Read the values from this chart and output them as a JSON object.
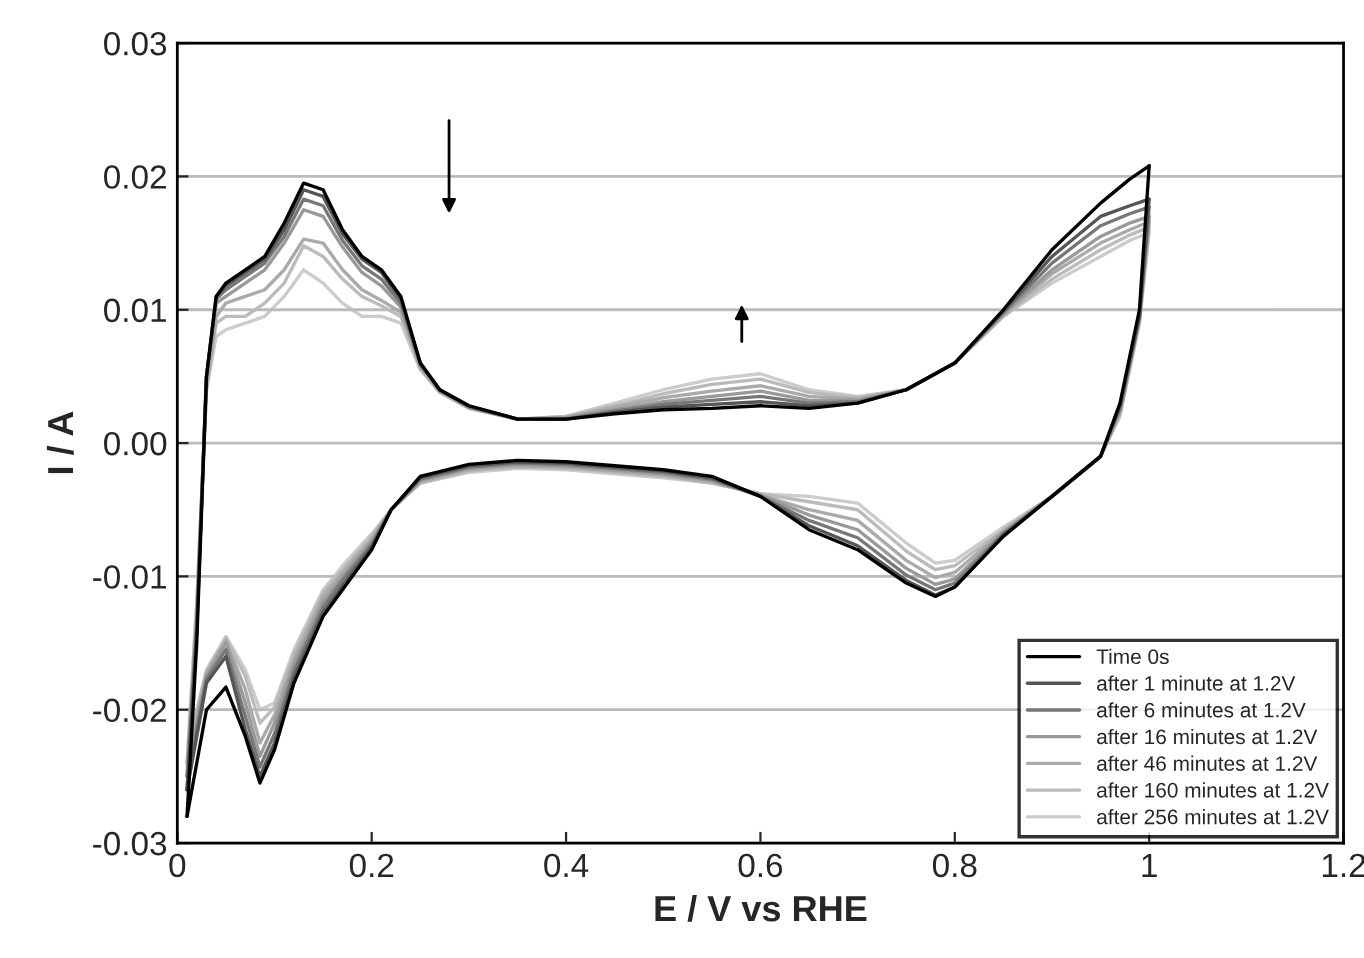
{
  "chart_data": {
    "type": "line",
    "xlabel": "E / V vs RHE",
    "ylabel": "I / A",
    "series": [
      {
        "name": "Time 0s",
        "color": "#000000",
        "x": [
          0.01,
          0.02,
          0.03,
          0.04,
          0.05,
          0.07,
          0.09,
          0.11,
          0.13,
          0.15,
          0.17,
          0.19,
          0.21,
          0.23,
          0.25,
          0.27,
          0.3,
          0.35,
          0.4,
          0.45,
          0.5,
          0.55,
          0.6,
          0.65,
          0.7,
          0.75,
          0.8,
          0.85,
          0.9,
          0.95,
          0.98,
          1.0
        ],
        "values": [
          -0.028,
          -0.015,
          0.005,
          0.011,
          0.012,
          0.013,
          0.014,
          0.0165,
          0.0195,
          0.019,
          0.016,
          0.014,
          0.013,
          0.011,
          0.006,
          0.004,
          0.0028,
          0.0018,
          0.0018,
          0.0022,
          0.0025,
          0.0026,
          0.0028,
          0.0026,
          0.003,
          0.004,
          0.006,
          0.01,
          0.0145,
          0.018,
          0.0198,
          0.0208
        ]
      },
      {
        "color": "#000000",
        "x": [
          1.0,
          0.99,
          0.97,
          0.95,
          0.9,
          0.85,
          0.8,
          0.78,
          0.75,
          0.7,
          0.65,
          0.6,
          0.55,
          0.5,
          0.45,
          0.4,
          0.35,
          0.3,
          0.25,
          0.22,
          0.2,
          0.17,
          0.15,
          0.12,
          0.1,
          0.085,
          0.07,
          0.05,
          0.03,
          0.02,
          0.01
        ],
        "values": [
          0.0208,
          0.01,
          0.003,
          -0.001,
          -0.004,
          -0.007,
          -0.0108,
          -0.0115,
          -0.0105,
          -0.008,
          -0.0065,
          -0.004,
          -0.0025,
          -0.002,
          -0.0017,
          -0.0014,
          -0.0013,
          -0.0016,
          -0.0025,
          -0.005,
          -0.008,
          -0.011,
          -0.013,
          -0.018,
          -0.023,
          -0.0255,
          -0.022,
          -0.0183,
          -0.02,
          -0.024,
          -0.028
        ]
      },
      {
        "name": "after 1 minute at 1.2V",
        "color": "#555555",
        "x": [
          0.01,
          0.02,
          0.03,
          0.04,
          0.05,
          0.07,
          0.09,
          0.11,
          0.13,
          0.15,
          0.17,
          0.19,
          0.21,
          0.23,
          0.25,
          0.27,
          0.3,
          0.35,
          0.4,
          0.45,
          0.5,
          0.55,
          0.6,
          0.65,
          0.7,
          0.75,
          0.8,
          0.85,
          0.9,
          0.95,
          0.98,
          1.0
        ],
        "values": [
          -0.026,
          -0.014,
          0.005,
          0.011,
          0.0118,
          0.0128,
          0.0138,
          0.016,
          0.019,
          0.0185,
          0.0157,
          0.0138,
          0.0128,
          0.0108,
          0.006,
          0.004,
          0.0028,
          0.0018,
          0.0018,
          0.0023,
          0.0027,
          0.0029,
          0.0031,
          0.0028,
          0.003,
          0.004,
          0.006,
          0.0099,
          0.014,
          0.017,
          0.0178,
          0.0183
        ]
      },
      {
        "color": "#555555",
        "x": [
          1.0,
          0.99,
          0.97,
          0.95,
          0.9,
          0.85,
          0.8,
          0.78,
          0.75,
          0.7,
          0.65,
          0.6,
          0.55,
          0.5,
          0.45,
          0.4,
          0.35,
          0.3,
          0.25,
          0.22,
          0.2,
          0.17,
          0.15,
          0.12,
          0.1,
          0.085,
          0.07,
          0.05,
          0.03,
          0.02,
          0.01
        ],
        "values": [
          0.0183,
          0.0095,
          0.0028,
          -0.001,
          -0.004,
          -0.0069,
          -0.0108,
          -0.0114,
          -0.0103,
          -0.0077,
          -0.0062,
          -0.004,
          -0.0026,
          -0.0021,
          -0.0018,
          -0.0015,
          -0.0014,
          -0.0017,
          -0.0026,
          -0.005,
          -0.0078,
          -0.0107,
          -0.0127,
          -0.0176,
          -0.0225,
          -0.025,
          -0.0215,
          -0.016,
          -0.018,
          -0.022,
          -0.026
        ]
      },
      {
        "name": "after 6 minutes at 1.2V",
        "color": "#777777",
        "x": [
          0.01,
          0.02,
          0.03,
          0.04,
          0.05,
          0.07,
          0.09,
          0.11,
          0.13,
          0.15,
          0.17,
          0.19,
          0.21,
          0.23,
          0.25,
          0.27,
          0.3,
          0.35,
          0.4,
          0.45,
          0.5,
          0.55,
          0.6,
          0.65,
          0.7,
          0.75,
          0.8,
          0.85,
          0.9,
          0.95,
          0.98,
          1.0
        ],
        "values": [
          -0.026,
          -0.014,
          0.005,
          0.0108,
          0.0115,
          0.0125,
          0.0135,
          0.0155,
          0.0183,
          0.0178,
          0.0152,
          0.0133,
          0.0123,
          0.0105,
          0.0059,
          0.004,
          0.0027,
          0.0018,
          0.0018,
          0.0024,
          0.0029,
          0.0032,
          0.0035,
          0.003,
          0.0031,
          0.004,
          0.006,
          0.0098,
          0.0135,
          0.0163,
          0.0172,
          0.0177
        ]
      },
      {
        "color": "#777777",
        "x": [
          1.0,
          0.99,
          0.97,
          0.95,
          0.9,
          0.85,
          0.8,
          0.78,
          0.75,
          0.7,
          0.65,
          0.6,
          0.55,
          0.5,
          0.45,
          0.4,
          0.35,
          0.3,
          0.25,
          0.22,
          0.2,
          0.17,
          0.15,
          0.12,
          0.1,
          0.085,
          0.07,
          0.05,
          0.03,
          0.02,
          0.01
        ],
        "values": [
          0.0177,
          0.0095,
          0.0026,
          -0.001,
          -0.004,
          -0.0068,
          -0.0105,
          -0.011,
          -0.0099,
          -0.0071,
          -0.0058,
          -0.004,
          -0.0027,
          -0.0022,
          -0.0019,
          -0.0016,
          -0.0015,
          -0.0018,
          -0.0027,
          -0.005,
          -0.0076,
          -0.0103,
          -0.0123,
          -0.0171,
          -0.0218,
          -0.0243,
          -0.0205,
          -0.0155,
          -0.0177,
          -0.0215,
          -0.026
        ]
      },
      {
        "name": "after 16 minutes at 1.2V",
        "color": "#999999",
        "x": [
          0.01,
          0.02,
          0.03,
          0.04,
          0.05,
          0.07,
          0.09,
          0.11,
          0.13,
          0.15,
          0.17,
          0.19,
          0.21,
          0.23,
          0.25,
          0.27,
          0.3,
          0.35,
          0.4,
          0.45,
          0.5,
          0.55,
          0.6,
          0.65,
          0.7,
          0.75,
          0.8,
          0.85,
          0.9,
          0.95,
          0.98,
          1.0
        ],
        "values": [
          -0.025,
          -0.013,
          0.005,
          0.0105,
          0.011,
          0.012,
          0.013,
          0.015,
          0.0175,
          0.017,
          0.0147,
          0.0128,
          0.0118,
          0.0102,
          0.0058,
          0.0039,
          0.0027,
          0.0018,
          0.0019,
          0.0025,
          0.0031,
          0.0035,
          0.0039,
          0.0032,
          0.0032,
          0.004,
          0.006,
          0.0097,
          0.013,
          0.0155,
          0.0165,
          0.017
        ]
      },
      {
        "color": "#999999",
        "x": [
          1.0,
          0.99,
          0.97,
          0.95,
          0.9,
          0.85,
          0.8,
          0.78,
          0.75,
          0.7,
          0.65,
          0.6,
          0.55,
          0.5,
          0.45,
          0.4,
          0.35,
          0.3,
          0.25,
          0.22,
          0.2,
          0.17,
          0.15,
          0.12,
          0.1,
          0.085,
          0.07,
          0.05,
          0.03,
          0.02,
          0.01
        ],
        "values": [
          0.017,
          0.0093,
          0.0025,
          -0.001,
          -0.004,
          -0.0067,
          -0.0102,
          -0.0106,
          -0.0094,
          -0.0065,
          -0.0054,
          -0.0039,
          -0.0028,
          -0.0023,
          -0.002,
          -0.0017,
          -0.0016,
          -0.0019,
          -0.0028,
          -0.005,
          -0.0074,
          -0.01,
          -0.0119,
          -0.0166,
          -0.021,
          -0.0235,
          -0.0195,
          -0.015,
          -0.0175,
          -0.021,
          -0.025
        ]
      },
      {
        "name": "after 46 minutes at 1.2V",
        "color": "#aaaaaa",
        "x": [
          0.01,
          0.02,
          0.03,
          0.04,
          0.05,
          0.07,
          0.09,
          0.11,
          0.13,
          0.15,
          0.17,
          0.19,
          0.21,
          0.23,
          0.25,
          0.27,
          0.3,
          0.35,
          0.4,
          0.45,
          0.5,
          0.55,
          0.6,
          0.65,
          0.7,
          0.75,
          0.8,
          0.85,
          0.9,
          0.95,
          0.98,
          1.0
        ],
        "values": [
          -0.025,
          -0.013,
          0.004,
          0.0095,
          0.0105,
          0.011,
          0.0115,
          0.013,
          0.0153,
          0.015,
          0.013,
          0.0115,
          0.0107,
          0.0098,
          0.0057,
          0.0039,
          0.0027,
          0.0018,
          0.0019,
          0.0027,
          0.0034,
          0.0039,
          0.0043,
          0.0035,
          0.0033,
          0.004,
          0.006,
          0.0096,
          0.0127,
          0.015,
          0.016,
          0.0166
        ]
      },
      {
        "color": "#aaaaaa",
        "x": [
          1.0,
          0.99,
          0.97,
          0.95,
          0.9,
          0.85,
          0.8,
          0.78,
          0.75,
          0.7,
          0.65,
          0.6,
          0.55,
          0.5,
          0.45,
          0.4,
          0.35,
          0.3,
          0.25,
          0.22,
          0.2,
          0.17,
          0.15,
          0.12,
          0.1,
          0.085,
          0.07,
          0.05,
          0.03,
          0.02,
          0.01
        ],
        "values": [
          0.0166,
          0.0092,
          0.0023,
          -0.001,
          -0.004,
          -0.0066,
          -0.0097,
          -0.0101,
          -0.0088,
          -0.0058,
          -0.005,
          -0.0039,
          -0.0029,
          -0.0024,
          -0.0021,
          -0.0018,
          -0.0017,
          -0.002,
          -0.0029,
          -0.005,
          -0.0072,
          -0.0097,
          -0.0115,
          -0.0162,
          -0.0204,
          -0.0225,
          -0.0185,
          -0.0148,
          -0.0173,
          -0.0205,
          -0.025
        ]
      },
      {
        "name": "after 160 minutes at 1.2V",
        "color": "#bbbbbb",
        "x": [
          0.01,
          0.02,
          0.03,
          0.04,
          0.05,
          0.07,
          0.09,
          0.11,
          0.13,
          0.15,
          0.17,
          0.19,
          0.21,
          0.23,
          0.25,
          0.27,
          0.3,
          0.35,
          0.4,
          0.45,
          0.5,
          0.55,
          0.6,
          0.65,
          0.7,
          0.75,
          0.8,
          0.85,
          0.9,
          0.95,
          0.98,
          1.0
        ],
        "values": [
          -0.024,
          -0.012,
          0.004,
          0.009,
          0.0095,
          0.0095,
          0.0105,
          0.012,
          0.0148,
          0.014,
          0.0123,
          0.011,
          0.0103,
          0.0095,
          0.0056,
          0.0038,
          0.0026,
          0.0018,
          0.002,
          0.0028,
          0.0037,
          0.0044,
          0.0048,
          0.0038,
          0.0034,
          0.004,
          0.006,
          0.0095,
          0.0123,
          0.0145,
          0.0156,
          0.0162
        ]
      },
      {
        "color": "#bbbbbb",
        "x": [
          1.0,
          0.99,
          0.97,
          0.95,
          0.9,
          0.85,
          0.8,
          0.78,
          0.75,
          0.7,
          0.65,
          0.6,
          0.55,
          0.5,
          0.45,
          0.4,
          0.35,
          0.3,
          0.25,
          0.22,
          0.2,
          0.17,
          0.15,
          0.12,
          0.1,
          0.085,
          0.07,
          0.05,
          0.03,
          0.02,
          0.01
        ],
        "values": [
          0.0162,
          0.0091,
          0.0022,
          -0.001,
          -0.004,
          -0.0065,
          -0.0092,
          -0.0095,
          -0.0081,
          -0.005,
          -0.0044,
          -0.0038,
          -0.003,
          -0.0025,
          -0.0022,
          -0.0019,
          -0.0018,
          -0.0021,
          -0.003,
          -0.005,
          -0.007,
          -0.0095,
          -0.0112,
          -0.0158,
          -0.0198,
          -0.021,
          -0.0175,
          -0.0146,
          -0.0171,
          -0.0202,
          -0.024
        ]
      },
      {
        "name": "after 256 minutes at 1.2V",
        "color": "#cccccc",
        "x": [
          0.01,
          0.02,
          0.03,
          0.04,
          0.05,
          0.07,
          0.09,
          0.11,
          0.13,
          0.15,
          0.17,
          0.19,
          0.21,
          0.23,
          0.25,
          0.27,
          0.3,
          0.35,
          0.4,
          0.45,
          0.5,
          0.55,
          0.6,
          0.65,
          0.7,
          0.75,
          0.8,
          0.85,
          0.9,
          0.95,
          0.98,
          1.0
        ],
        "values": [
          -0.024,
          -0.012,
          0.004,
          0.008,
          0.0085,
          0.009,
          0.0095,
          0.011,
          0.013,
          0.012,
          0.0105,
          0.0095,
          0.0095,
          0.009,
          0.0055,
          0.0038,
          0.0026,
          0.0018,
          0.002,
          0.003,
          0.004,
          0.0048,
          0.0052,
          0.004,
          0.0035,
          0.004,
          0.006,
          0.0095,
          0.012,
          0.014,
          0.0152,
          0.0158
        ]
      },
      {
        "color": "#cccccc",
        "x": [
          1.0,
          0.99,
          0.97,
          0.95,
          0.9,
          0.85,
          0.8,
          0.78,
          0.75,
          0.7,
          0.65,
          0.6,
          0.55,
          0.5,
          0.45,
          0.4,
          0.35,
          0.3,
          0.25,
          0.22,
          0.2,
          0.17,
          0.15,
          0.12,
          0.1,
          0.085,
          0.07,
          0.05,
          0.03,
          0.02,
          0.01
        ],
        "values": [
          0.0158,
          0.009,
          0.002,
          -0.001,
          -0.004,
          -0.0063,
          -0.0088,
          -0.009,
          -0.0075,
          -0.0045,
          -0.004,
          -0.0038,
          -0.003,
          -0.0026,
          -0.0023,
          -0.002,
          -0.0019,
          -0.0022,
          -0.003,
          -0.005,
          -0.0068,
          -0.0092,
          -0.011,
          -0.0155,
          -0.0195,
          -0.02,
          -0.017,
          -0.0145,
          -0.017,
          -0.02,
          -0.024
        ]
      }
    ],
    "xlim": [
      0,
      1.2
    ],
    "xticks": [
      0,
      0.2,
      0.4,
      0.6,
      0.8,
      {
        "value": 1,
        "label": "1"
      },
      1.2
    ],
    "ylim": [
      -0.03,
      0.03
    ],
    "yticks": [
      {
        "value": -0.03,
        "label": "-0.03"
      },
      {
        "value": -0.02,
        "label": "-0.02"
      },
      {
        "value": -0.01,
        "label": "-0.01"
      },
      {
        "value": 0,
        "label": "0.00"
      },
      {
        "value": 0.01,
        "label": "0.01"
      },
      {
        "value": 0.02,
        "label": "0.02"
      },
      {
        "value": 0.03,
        "label": "0.03"
      }
    ],
    "grid": "y",
    "legend": "bottom right",
    "line_style": "solid",
    "marker": "none"
  }
}
